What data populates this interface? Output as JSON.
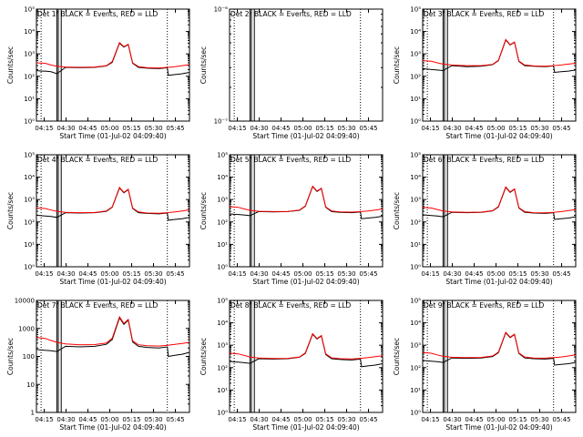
{
  "colors": {
    "background": "#ffffff",
    "axis": "#000000",
    "events": "#000000",
    "lld": "#ff0000",
    "marker_line": "#000000"
  },
  "shared": {
    "ylabel": "Counts/sec",
    "xlabel": "Start Time (01-Jul-02 04:09:40)",
    "x_tick_labels": [
      "04:15",
      "04:30",
      "04:45",
      "05:00",
      "05:15",
      "05:30",
      "05:45"
    ],
    "x_ticks_minutes": [
      5.33,
      20.33,
      35.33,
      50.33,
      65.33,
      80.33,
      95.33
    ],
    "xlim_minutes": [
      0,
      105
    ],
    "dotted_markers_minutes": [
      3.2,
      89.8
    ],
    "solid_markers_minutes": [
      14.0,
      15.0,
      17.0
    ],
    "legend_text": "BLACK = Events, RED = LLD"
  },
  "chart_data": [
    {
      "type": "line",
      "detector": "1f",
      "title": "Det 1f  BLACK = Events, RED = LLD",
      "ylim": [
        1,
        100000
      ],
      "ylog": true,
      "y_tick_labels": [
        "10⁰",
        "10¹",
        "10²",
        "10³",
        "10⁴",
        "10⁵"
      ],
      "y_ticks": [
        1,
        10,
        100,
        1000,
        10000,
        100000
      ],
      "series": [
        {
          "name": "Events",
          "x": [
            0,
            3.2,
            6,
            10,
            14,
            20,
            30,
            40,
            48,
            52,
            57,
            60,
            63,
            66,
            70,
            76,
            84,
            89.8,
            90.5,
            95,
            100,
            105
          ],
          "y": [
            180,
            170,
            170,
            160,
            130,
            250,
            240,
            250,
            290,
            420,
            3000,
            2000,
            2600,
            380,
            250,
            230,
            220,
            240,
            110,
            120,
            130,
            150
          ]
        },
        {
          "name": "LLD",
          "x": [
            0,
            6,
            10,
            14,
            20,
            30,
            40,
            48,
            52,
            57,
            60,
            63,
            66,
            70,
            76,
            84,
            90,
            95,
            100,
            105
          ],
          "y": [
            400,
            380,
            320,
            280,
            260,
            250,
            260,
            300,
            450,
            3200,
            2100,
            2700,
            400,
            270,
            240,
            235,
            250,
            270,
            300,
            330
          ]
        }
      ]
    },
    {
      "type": "line",
      "detector": "2r",
      "title": "Det 2r  BLACK = Events, RED = LLD",
      "ylim": [
        1e-07,
        1e-06
      ],
      "ylog": true,
      "y_tick_labels": [
        "10⁻⁷",
        "10⁻⁶"
      ],
      "y_ticks": [
        1e-07,
        1e-06
      ],
      "series": []
    },
    {
      "type": "line",
      "detector": "3f",
      "title": "Det 3f  BLACK = Events, RED = LLD",
      "ylim": [
        1,
        100000
      ],
      "ylog": true,
      "y_tick_labels": [
        "10⁰",
        "10¹",
        "10²",
        "10³",
        "10⁴",
        "10⁵"
      ],
      "y_ticks": [
        1,
        10,
        100,
        1000,
        10000,
        100000
      ],
      "series": [
        {
          "name": "Events",
          "x": [
            0,
            3.2,
            6,
            10,
            14,
            20,
            30,
            40,
            48,
            52,
            57,
            60,
            63,
            66,
            70,
            76,
            84,
            89.8,
            90.5,
            95,
            100,
            105
          ],
          "y": [
            220,
            210,
            200,
            190,
            180,
            300,
            270,
            280,
            330,
            500,
            4200,
            2500,
            3300,
            460,
            300,
            280,
            270,
            290,
            150,
            160,
            170,
            190
          ]
        },
        {
          "name": "LLD",
          "x": [
            0,
            6,
            10,
            14,
            20,
            30,
            40,
            48,
            52,
            57,
            60,
            63,
            66,
            70,
            76,
            84,
            90,
            95,
            100,
            105
          ],
          "y": [
            500,
            470,
            400,
            350,
            320,
            300,
            300,
            340,
            520,
            4400,
            2600,
            3400,
            480,
            320,
            290,
            280,
            300,
            320,
            350,
            380
          ]
        }
      ]
    },
    {
      "type": "line",
      "detector": "4f",
      "title": "Det 4f  BLACK = Events, RED = LLD",
      "ylim": [
        1,
        100000
      ],
      "ylog": true,
      "y_tick_labels": [
        "10⁰",
        "10¹",
        "10²",
        "10³",
        "10⁴",
        "10⁵"
      ],
      "y_ticks": [
        1,
        10,
        100,
        1000,
        10000,
        100000
      ],
      "series": [
        {
          "name": "Events",
          "x": [
            0,
            3.2,
            6,
            10,
            14,
            20,
            30,
            40,
            48,
            52,
            57,
            60,
            63,
            66,
            70,
            76,
            84,
            89.8,
            90.5,
            95,
            100,
            105
          ],
          "y": [
            200,
            190,
            185,
            175,
            160,
            260,
            250,
            260,
            300,
            450,
            3300,
            2000,
            2800,
            400,
            260,
            240,
            230,
            250,
            120,
            130,
            140,
            160
          ]
        },
        {
          "name": "LLD",
          "x": [
            0,
            6,
            10,
            14,
            20,
            30,
            40,
            48,
            52,
            57,
            60,
            63,
            66,
            70,
            76,
            84,
            90,
            95,
            100,
            105
          ],
          "y": [
            420,
            400,
            340,
            300,
            270,
            260,
            265,
            310,
            470,
            3500,
            2100,
            2900,
            420,
            280,
            250,
            245,
            260,
            280,
            310,
            350
          ]
        }
      ]
    },
    {
      "type": "line",
      "detector": "5f",
      "title": "Det 5f  BLACK = Events, RED = LLD",
      "ylim": [
        1,
        100000
      ],
      "ylog": true,
      "y_tick_labels": [
        "10⁰",
        "10¹",
        "10²",
        "10³",
        "10⁴",
        "10⁵"
      ],
      "y_ticks": [
        1,
        10,
        100,
        1000,
        10000,
        100000
      ],
      "series": [
        {
          "name": "Events",
          "x": [
            0,
            3.2,
            6,
            10,
            14,
            20,
            30,
            40,
            48,
            52,
            57,
            60,
            63,
            66,
            70,
            76,
            84,
            89.8,
            90.5,
            95,
            100,
            105
          ],
          "y": [
            230,
            220,
            215,
            205,
            190,
            290,
            280,
            290,
            330,
            500,
            3800,
            2300,
            3100,
            450,
            290,
            270,
            260,
            280,
            140,
            150,
            160,
            180
          ]
        },
        {
          "name": "LLD",
          "x": [
            0,
            6,
            10,
            14,
            20,
            30,
            40,
            48,
            52,
            57,
            60,
            63,
            66,
            70,
            76,
            84,
            90,
            95,
            100,
            105
          ],
          "y": [
            480,
            450,
            380,
            330,
            300,
            290,
            295,
            340,
            520,
            4000,
            2400,
            3200,
            470,
            310,
            280,
            275,
            290,
            310,
            340,
            380
          ]
        }
      ]
    },
    {
      "type": "line",
      "detector": "6f",
      "title": "Det 6f  BLACK = Events, RED = LLD",
      "ylim": [
        1,
        100000
      ],
      "ylog": true,
      "y_tick_labels": [
        "10⁰",
        "10¹",
        "10²",
        "10³",
        "10⁴",
        "10⁵"
      ],
      "y_ticks": [
        1,
        10,
        100,
        1000,
        10000,
        100000
      ],
      "series": [
        {
          "name": "Events",
          "x": [
            0,
            3.2,
            6,
            10,
            14,
            20,
            30,
            40,
            48,
            52,
            57,
            60,
            63,
            66,
            70,
            76,
            84,
            89.8,
            90.5,
            95,
            100,
            105
          ],
          "y": [
            210,
            200,
            195,
            185,
            170,
            270,
            260,
            270,
            310,
            470,
            3500,
            2100,
            2900,
            420,
            270,
            250,
            240,
            260,
            130,
            140,
            150,
            170
          ]
        },
        {
          "name": "LLD",
          "x": [
            0,
            6,
            10,
            14,
            20,
            30,
            40,
            48,
            52,
            57,
            60,
            63,
            66,
            70,
            76,
            84,
            90,
            95,
            100,
            105
          ],
          "y": [
            450,
            420,
            360,
            310,
            280,
            270,
            275,
            320,
            490,
            3700,
            2200,
            3000,
            440,
            290,
            260,
            255,
            270,
            290,
            320,
            360
          ]
        }
      ]
    },
    {
      "type": "line",
      "detector": "7f",
      "title": "Det 7f  BLACK = Events, RED = LLD",
      "ylim": [
        1,
        10000
      ],
      "ylog": true,
      "y_tick_labels": [
        "1",
        "10",
        "100",
        "1000",
        "10000"
      ],
      "y_ticks": [
        1,
        10,
        100,
        1000,
        10000
      ],
      "series": [
        {
          "name": "Events",
          "x": [
            0,
            3.2,
            6,
            10,
            14,
            20,
            30,
            40,
            48,
            52,
            57,
            60,
            63,
            66,
            70,
            76,
            84,
            89.8,
            90.5,
            95,
            100,
            105
          ],
          "y": [
            180,
            170,
            165,
            160,
            150,
            230,
            220,
            230,
            270,
            400,
            2400,
            1400,
            2000,
            330,
            230,
            210,
            200,
            220,
            100,
            110,
            120,
            140
          ]
        },
        {
          "name": "LLD",
          "x": [
            0,
            6,
            10,
            14,
            20,
            30,
            40,
            48,
            52,
            57,
            60,
            63,
            66,
            70,
            76,
            84,
            90,
            95,
            100,
            105
          ],
          "y": [
            480,
            440,
            370,
            320,
            280,
            260,
            265,
            300,
            450,
            2600,
            1500,
            2100,
            360,
            260,
            240,
            235,
            250,
            270,
            290,
            320
          ]
        }
      ]
    },
    {
      "type": "line",
      "detector": "8f",
      "title": "Det 8f  BLACK = Events, RED = LLD",
      "ylim": [
        1,
        100000
      ],
      "ylog": true,
      "y_tick_labels": [
        "10⁰",
        "10¹",
        "10²",
        "10³",
        "10⁴",
        "10⁵"
      ],
      "y_ticks": [
        1,
        10,
        100,
        1000,
        10000,
        100000
      ],
      "series": [
        {
          "name": "Events",
          "x": [
            0,
            3.2,
            6,
            10,
            14,
            20,
            30,
            40,
            48,
            52,
            57,
            60,
            63,
            66,
            70,
            76,
            84,
            89.8,
            90.5,
            95,
            100,
            105
          ],
          "y": [
            190,
            180,
            175,
            165,
            155,
            250,
            240,
            250,
            290,
            430,
            3100,
            1900,
            2600,
            380,
            250,
            230,
            220,
            240,
            110,
            120,
            130,
            150
          ]
        },
        {
          "name": "LLD",
          "x": [
            0,
            6,
            10,
            14,
            20,
            30,
            40,
            48,
            52,
            57,
            60,
            63,
            66,
            70,
            76,
            84,
            90,
            95,
            100,
            105
          ],
          "y": [
            440,
            410,
            350,
            300,
            270,
            255,
            260,
            300,
            460,
            3300,
            2000,
            2700,
            410,
            275,
            250,
            245,
            260,
            280,
            310,
            340
          ]
        }
      ]
    },
    {
      "type": "line",
      "detector": "9f",
      "title": "Det 9f  BLACK = Events, RED = LLD",
      "ylim": [
        1,
        100000
      ],
      "ylog": true,
      "y_tick_labels": [
        "10⁰",
        "10¹",
        "10²",
        "10³",
        "10⁴",
        "10⁵"
      ],
      "y_ticks": [
        1,
        10,
        100,
        1000,
        10000,
        100000
      ],
      "series": [
        {
          "name": "Events",
          "x": [
            0,
            3.2,
            6,
            10,
            14,
            20,
            30,
            40,
            48,
            52,
            57,
            60,
            63,
            66,
            70,
            76,
            84,
            89.8,
            90.5,
            95,
            100,
            105
          ],
          "y": [
            210,
            200,
            195,
            185,
            170,
            270,
            260,
            270,
            310,
            470,
            3600,
            2200,
            3000,
            430,
            270,
            250,
            240,
            260,
            130,
            140,
            150,
            170
          ]
        },
        {
          "name": "LLD",
          "x": [
            0,
            6,
            10,
            14,
            20,
            30,
            40,
            48,
            52,
            57,
            60,
            63,
            66,
            70,
            76,
            84,
            90,
            95,
            100,
            105
          ],
          "y": [
            470,
            440,
            370,
            320,
            290,
            280,
            285,
            330,
            500,
            3800,
            2300,
            3100,
            450,
            300,
            270,
            265,
            280,
            300,
            330,
            370
          ]
        }
      ]
    }
  ]
}
